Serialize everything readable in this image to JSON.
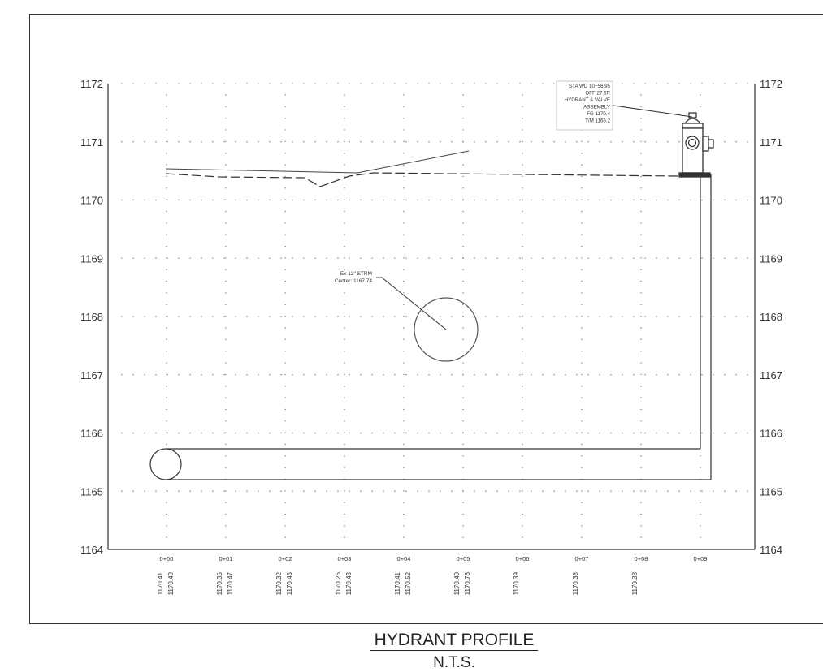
{
  "profile": {
    "elevations": [
      "1172",
      "1171",
      "1170",
      "1169",
      "1168",
      "1167",
      "1166",
      "1165",
      "1164"
    ],
    "stations": [
      "0+00",
      "0+01",
      "0+02",
      "0+03",
      "0+04",
      "0+05",
      "0+06",
      "0+07",
      "0+08",
      "0+09"
    ],
    "existing_grades": [
      "1170.41",
      "1170.35",
      "1170.32",
      "1170.26",
      "1170.41",
      "1170.40",
      "1170.39",
      "1170.38",
      "1170.38",
      ""
    ],
    "proposed_grades": [
      "1170.49",
      "1170.47",
      "1170.45",
      "1170.43",
      "1170.52",
      "1170.76",
      "",
      "",
      "",
      ""
    ],
    "hydrant_callout": [
      "STA WD 10+56.95",
      "OFF 27.6R",
      "HYDRANT & VALVE",
      "ASSEMBLY",
      "FG 1170.4",
      "T/M 1165.2"
    ],
    "storm_callout": [
      "Ex 12\" STRM",
      "Center: 1167.74"
    ]
  },
  "caption": {
    "title": "HYDRANT PROFILE",
    "subtitle": "N.T.S."
  }
}
